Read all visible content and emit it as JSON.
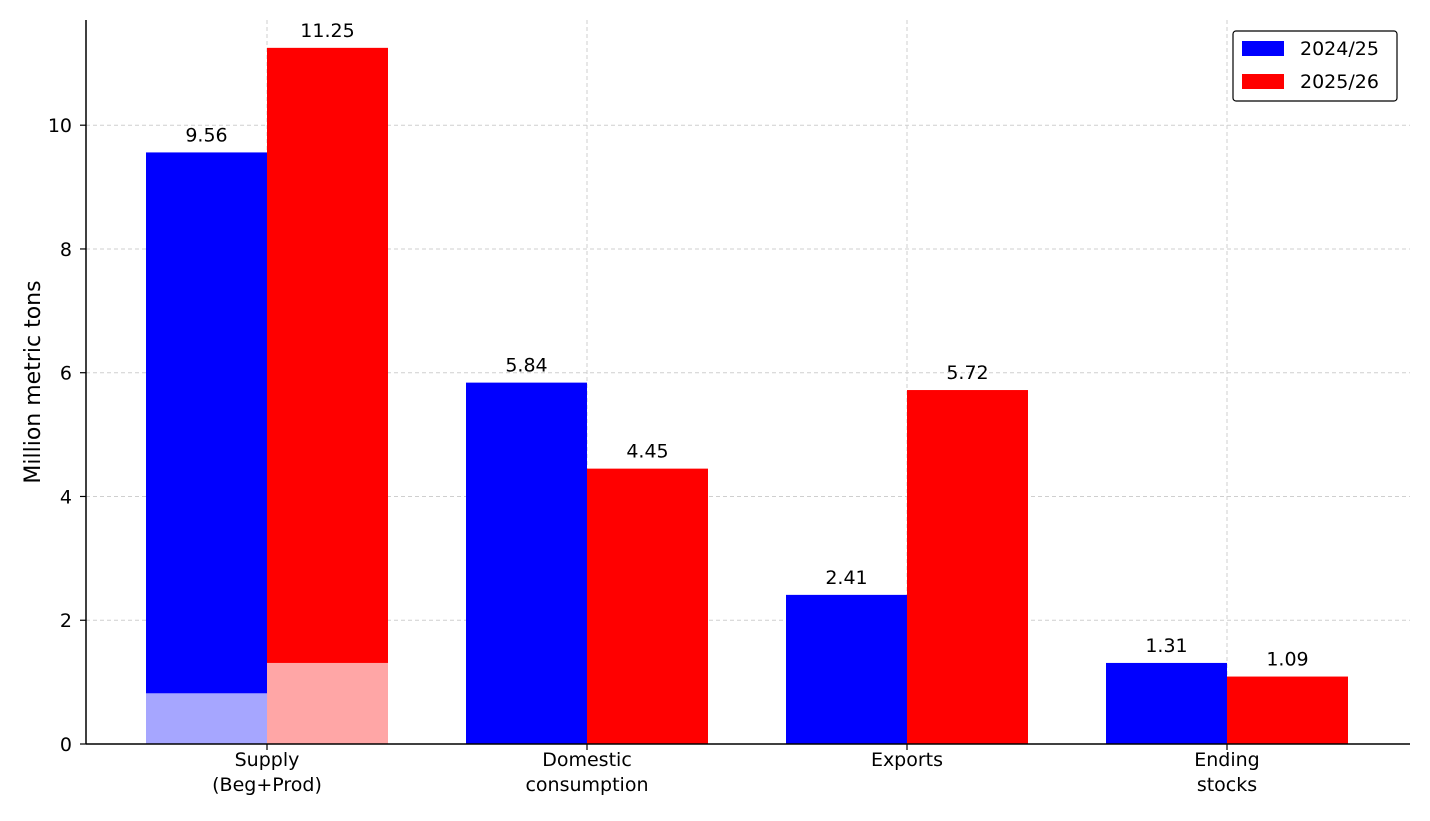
{
  "chart_data": {
    "type": "bar",
    "categories": [
      [
        "Supply",
        "(Beg+Prod)"
      ],
      [
        "Domestic",
        "consumption"
      ],
      [
        "Exports"
      ],
      [
        "Ending",
        "stocks"
      ]
    ],
    "series": [
      {
        "name": "2024/25",
        "color": "#0000ff",
        "values": [
          9.56,
          5.84,
          2.41,
          1.31
        ],
        "labels": [
          "9.56",
          "5.84",
          "2.41",
          "1.31"
        ],
        "base_segment": 0.82,
        "base_segment_color": "#a6a6ff"
      },
      {
        "name": "2025/26",
        "color": "#ff0000",
        "values": [
          11.25,
          4.45,
          5.72,
          1.09
        ],
        "labels": [
          "11.25",
          "4.45",
          "5.72",
          "1.09"
        ],
        "base_segment": 1.31,
        "base_segment_color": "#ffa6a6"
      }
    ],
    "base_segment_category": 0,
    "ylabel": "Million metric tons",
    "ylim": [
      0,
      11.7
    ],
    "yticks": [
      0,
      2,
      4,
      6,
      8,
      10
    ],
    "grid": true,
    "legend": "top-right"
  }
}
